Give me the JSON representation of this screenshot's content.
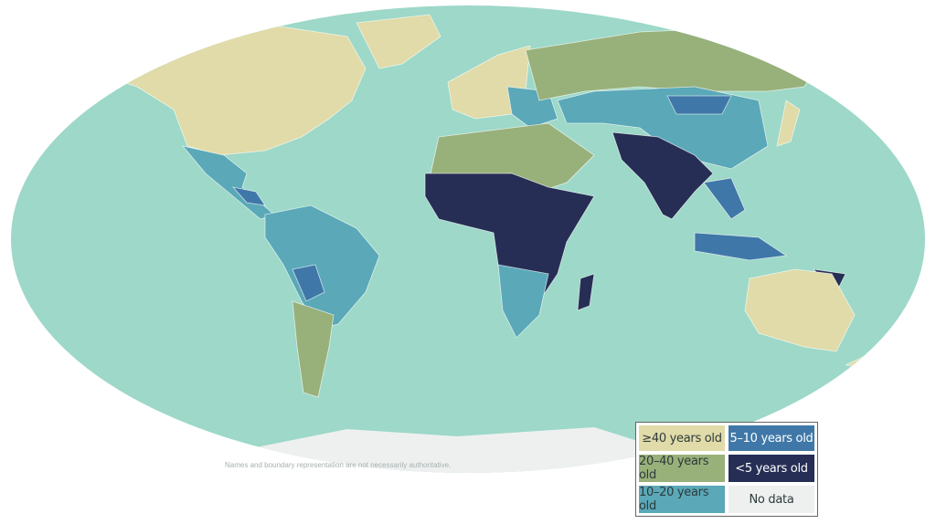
{
  "map": {
    "note": "Names and boundary representation are not necessarily authoritative.",
    "colors": {
      "ocean": "#9dd8c8",
      "ge40": "#e0dba8",
      "20to40": "#98b07a",
      "10to20": "#5aa8b8",
      "5to10": "#3f78a8",
      "lt5": "#262e55",
      "nodata": "#eef0f0"
    }
  },
  "legend": {
    "items": [
      {
        "label": "≥40 years old",
        "color": "#e0dba8"
      },
      {
        "label": "5–10 years old",
        "color": "#3f78a8"
      },
      {
        "label": "20–40 years old",
        "color": "#98b07a"
      },
      {
        "label": "<5 years old",
        "color": "#262e55"
      },
      {
        "label": "10–20 years old",
        "color": "#5aa8b8"
      },
      {
        "label": "No data",
        "color": "#eef0f0"
      }
    ]
  }
}
